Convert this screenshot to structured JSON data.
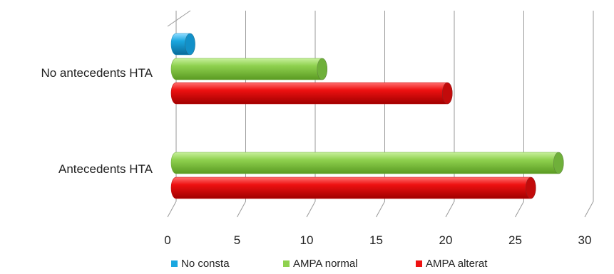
{
  "chart_data": {
    "type": "bar",
    "orientation": "horizontal",
    "style": "3d-cylinder",
    "categories": [
      "No antecedents HTA",
      "Antecedents HTA"
    ],
    "series": [
      {
        "name": "No consta",
        "color": "#1aa7e0",
        "values": [
          1,
          0
        ]
      },
      {
        "name": "AMPA normal",
        "color": "#8fd14f",
        "values": [
          10.5,
          27.5
        ]
      },
      {
        "name": "AMPA alterat",
        "color": "#ee1111",
        "values": [
          19.5,
          25.5
        ]
      }
    ],
    "xlim": [
      0,
      30
    ],
    "x_ticks": [
      "0",
      "5",
      "10",
      "15",
      "20",
      "25",
      "30"
    ],
    "grid": true,
    "legend_position": "bottom"
  }
}
